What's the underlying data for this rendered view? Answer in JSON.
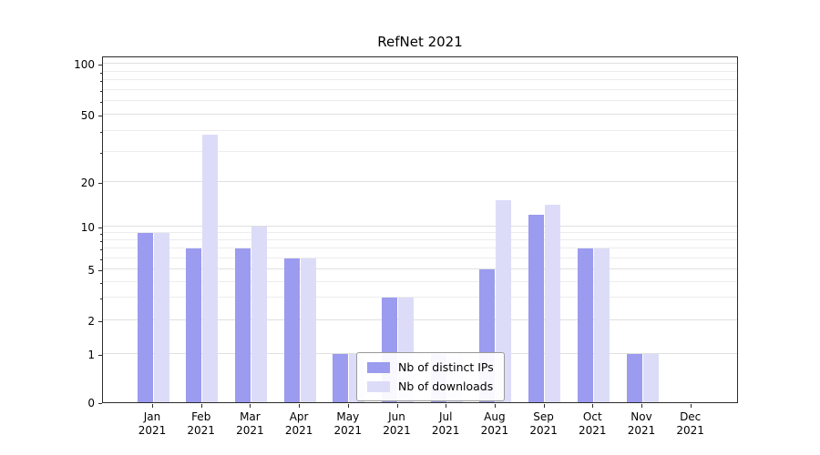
{
  "chart_data": {
    "type": "bar",
    "title": "RefNet 2021",
    "categories": [
      "Jan",
      "Feb",
      "Mar",
      "Apr",
      "May",
      "Jun",
      "Jul",
      "Aug",
      "Sep",
      "Oct",
      "Nov",
      "Dec"
    ],
    "year_label": "2021",
    "series": [
      {
        "name": "Nb of distinct IPs",
        "color": "#9b9bef",
        "values": [
          9,
          7,
          7,
          6,
          1,
          3,
          1,
          5,
          12,
          7,
          1,
          0
        ]
      },
      {
        "name": "Nb of downloads",
        "color": "#dcdcf9",
        "values": [
          9,
          38,
          10,
          6,
          1,
          3,
          1,
          15,
          14,
          7,
          1,
          0
        ]
      }
    ],
    "y_ticks": [
      0,
      1,
      2,
      5,
      10,
      20,
      50,
      100
    ],
    "y_scale": "symlog",
    "ylim": [
      0,
      110
    ],
    "grid": true,
    "legend_position": "lower center"
  }
}
